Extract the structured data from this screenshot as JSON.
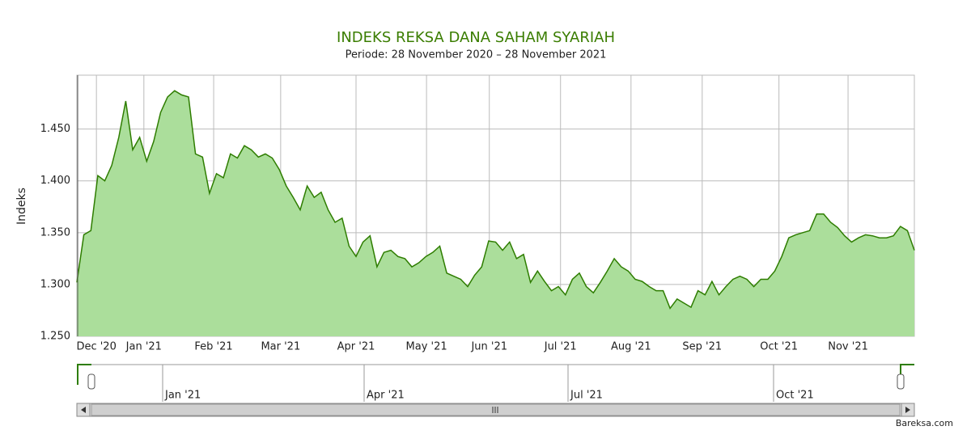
{
  "chart_data": {
    "type": "area",
    "title": "INDEKS REKSA DANA SAHAM SYARIAH",
    "subtitle": "Periode: 28 November 2020 – 28 November 2021",
    "y_label": "Indeks",
    "line_color": "#2e7d00",
    "fill_color": "#abde9b",
    "grid": true,
    "xlim": [
      0,
      120
    ],
    "xticks": [
      {
        "value": 2.8,
        "label": "Dec '20"
      },
      {
        "value": 9.6,
        "label": "Jan '21"
      },
      {
        "value": 19.6,
        "label": "Feb '21"
      },
      {
        "value": 29.2,
        "label": "Mar '21"
      },
      {
        "value": 40,
        "label": "Apr '21"
      },
      {
        "value": 50.1,
        "label": "May '21"
      },
      {
        "value": 59.1,
        "label": "Jun '21"
      },
      {
        "value": 69.3,
        "label": "Jul '21"
      },
      {
        "value": 79.4,
        "label": "Aug '21"
      },
      {
        "value": 89.6,
        "label": "Sep '21"
      },
      {
        "value": 100.6,
        "label": "Oct '21"
      },
      {
        "value": 110.5,
        "label": "Nov '21"
      }
    ],
    "ylim": [
      1250,
      1502
    ],
    "yticks": [
      {
        "value": 1250,
        "label": "1.250"
      },
      {
        "value": 1300,
        "label": "1.300"
      },
      {
        "value": 1350,
        "label": "1.350"
      },
      {
        "value": 1400,
        "label": "1.400"
      },
      {
        "value": 1450,
        "label": "1.450"
      }
    ],
    "values": [
      1302,
      1348,
      1352,
      1405,
      1400,
      1415,
      1442,
      1477,
      1430,
      1442,
      1419,
      1438,
      1466,
      1481,
      1487,
      1483,
      1481,
      1426,
      1423,
      1388,
      1407,
      1403,
      1426,
      1422,
      1434,
      1430,
      1423,
      1426,
      1422,
      1411,
      1395,
      1384,
      1372,
      1395,
      1384,
      1389,
      1372,
      1360,
      1364,
      1337,
      1327,
      1341,
      1347,
      1317,
      1331,
      1333,
      1327,
      1325,
      1317,
      1321,
      1327,
      1331,
      1337,
      1311,
      1308,
      1305,
      1298,
      1309,
      1317,
      1342,
      1341,
      1333,
      1341,
      1325,
      1329,
      1302,
      1313,
      1303,
      1294,
      1298,
      1290,
      1305,
      1311,
      1298,
      1292,
      1302,
      1313,
      1325,
      1317,
      1313,
      1305,
      1303,
      1298,
      1294,
      1294,
      1277,
      1286,
      1282,
      1278,
      1294,
      1290,
      1303,
      1290,
      1298,
      1305,
      1308,
      1305,
      1298,
      1305,
      1305,
      1313,
      1327,
      1345,
      1348,
      1350,
      1352,
      1368,
      1368,
      1360,
      1355,
      1347,
      1341,
      1345,
      1348,
      1347,
      1345,
      1345,
      1347,
      1356,
      1352,
      1333
    ],
    "navigator_labels": [
      "Jan '21",
      "Apr '21",
      "Jul '21",
      "Oct '21"
    ],
    "credit": "Bareksa.com"
  }
}
